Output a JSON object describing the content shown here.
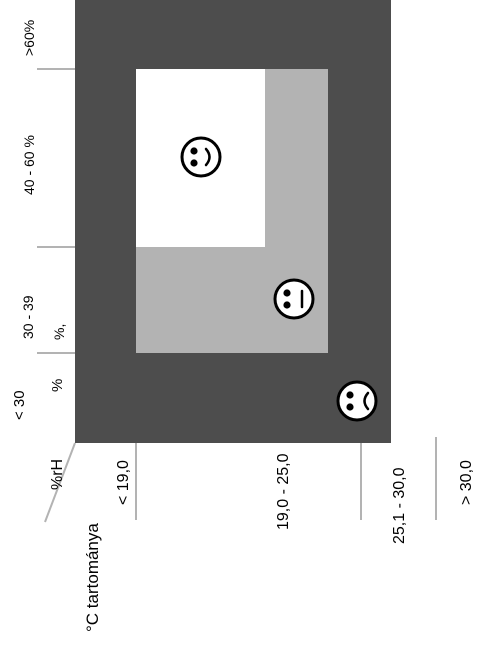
{
  "colors": {
    "outer_zone": "#4d4d4d",
    "middle_zone": "#b3b3b3",
    "comfort_zone": "#ffffff",
    "tick_lines": "#b3b3b3",
    "text": "#000000"
  },
  "humidity_axis": {
    "unit_label": "%rH",
    "ranges": [
      {
        "label": "< 30",
        "suffix": "%"
      },
      {
        "label": "30 - 39",
        "suffix": "%,"
      },
      {
        "label": "40 - 60 %",
        "suffix": ""
      },
      {
        "label": ">60%",
        "suffix": ""
      }
    ]
  },
  "temperature_axis": {
    "unit_label": "°C tartománya",
    "ranges": [
      {
        "label": "< 19,0"
      },
      {
        "label": "19,0 - 25,0"
      },
      {
        "label": "25,1 - 30,0"
      },
      {
        "label": "> 30,0"
      }
    ]
  },
  "zones": [
    {
      "name": "uncomfortable",
      "icon": "sad-face-icon"
    },
    {
      "name": "acceptable",
      "icon": "neutral-face-icon"
    },
    {
      "name": "comfortable",
      "icon": "happy-face-icon"
    }
  ]
}
